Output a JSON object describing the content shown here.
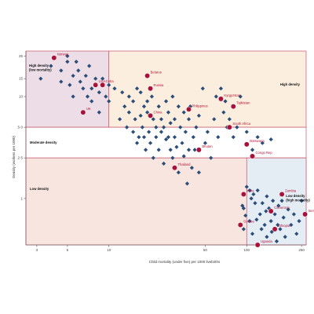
{
  "chart_data": {
    "type": "scatter",
    "xlabel": "Child mortality (under five) per 1000 livebirths",
    "ylabel": "Density (workers per 1000)",
    "x_scale": "log",
    "y_scale": "log",
    "xlim": [
      2.5,
      270
    ],
    "ylim": [
      0.35,
      28
    ],
    "x_ticks": [
      3,
      5,
      10,
      50,
      100,
      250
    ],
    "x_tick_labels": [
      "3",
      "5",
      "10",
      "50",
      "100",
      "250"
    ],
    "y_ticks": [
      1,
      2.5,
      5,
      10,
      15,
      25
    ],
    "y_tick_labels": [
      "1",
      "2·5",
      "5·0",
      "10",
      "15",
      "25"
    ],
    "thresholds": {
      "x_low": 10,
      "x_high": 100,
      "y_low": 2.5,
      "y_high": 5
    },
    "colors": {
      "point": "#2b4d78",
      "highlight": "#a8123a",
      "border": "#c8566b",
      "zone_high_low_mortality": "#ecdde6",
      "zone_high": "#fbeede",
      "zone_moderate": "#ffffff",
      "zone_low": "#f8e5df",
      "zone_low_high_mortality": "#e4ecf4"
    },
    "zones": [
      {
        "name": "High density\n(low mortality)",
        "key": "hd_lm"
      },
      {
        "name": "High density",
        "key": "hd"
      },
      {
        "name": "Moderate density",
        "key": "md"
      },
      {
        "name": "Low density",
        "key": "ld"
      },
      {
        "name": "Low density\n(high mortality)",
        "key": "ld_hm"
      }
    ],
    "highlighted": [
      {
        "label": "Norway",
        "x": 4,
        "y": 24
      },
      {
        "label": "USA",
        "x": 8,
        "y": 13
      },
      {
        "label": "Cuba",
        "x": 9,
        "y": 13
      },
      {
        "label": "UK",
        "x": 6.5,
        "y": 7
      },
      {
        "label": "Belarus",
        "x": 19,
        "y": 16
      },
      {
        "label": "Russia",
        "x": 20,
        "y": 12
      },
      {
        "label": "China",
        "x": 20,
        "y": 6.5
      },
      {
        "label": "Philippines",
        "x": 38,
        "y": 7.5
      },
      {
        "label": "Kyrgyzstan",
        "x": 65,
        "y": 9.5
      },
      {
        "label": "Tajikistan",
        "x": 80,
        "y": 8
      },
      {
        "label": "South Africa",
        "x": 75,
        "y": 5
      },
      {
        "label": "Bhutan",
        "x": 45,
        "y": 3
      },
      {
        "label": "Thailand",
        "x": 30,
        "y": 2
      },
      {
        "label": "Botswana",
        "x": 100,
        "y": 3.4
      },
      {
        "label": "Congo Rep",
        "x": 110,
        "y": 2.6
      },
      {
        "label": "India",
        "x": 95,
        "y": 1.1
      },
      {
        "label": "Zambia",
        "x": 180,
        "y": 1.1
      },
      {
        "label": "Cameroon",
        "x": 150,
        "y": 0.75
      },
      {
        "label": "Sierra Leone",
        "x": 265,
        "y": 0.7
      },
      {
        "label": "Guinea",
        "x": 90,
        "y": 0.55
      },
      {
        "label": "Ethiopia",
        "x": 160,
        "y": 0.5
      },
      {
        "label": "Uganda",
        "x": 120,
        "y": 0.35
      }
    ],
    "points": [
      [
        3.2,
        15
      ],
      [
        3.8,
        20
      ],
      [
        4.5,
        14
      ],
      [
        4.5,
        18
      ],
      [
        5,
        25
      ],
      [
        5,
        22
      ],
      [
        5.2,
        13
      ],
      [
        5.5,
        16
      ],
      [
        5.5,
        10
      ],
      [
        5.8,
        22
      ],
      [
        6,
        18
      ],
      [
        6.2,
        14
      ],
      [
        6.5,
        12
      ],
      [
        6.8,
        16
      ],
      [
        7,
        10
      ],
      [
        7.2,
        20
      ],
      [
        7.5,
        12
      ],
      [
        7.5,
        9
      ],
      [
        8,
        15
      ],
      [
        8.5,
        11
      ],
      [
        8.5,
        7
      ],
      [
        9,
        15
      ],
      [
        9.5,
        10
      ],
      [
        10,
        13
      ],
      [
        10,
        9
      ],
      [
        11,
        12
      ],
      [
        12,
        6
      ],
      [
        12.5,
        11
      ],
      [
        13,
        8
      ],
      [
        13.5,
        5
      ],
      [
        14,
        10
      ],
      [
        14,
        7
      ],
      [
        15,
        4.5
      ],
      [
        15,
        9
      ],
      [
        15.5,
        6
      ],
      [
        16,
        12
      ],
      [
        16,
        3.5
      ],
      [
        16.5,
        4
      ],
      [
        17,
        11
      ],
      [
        17,
        6.5
      ],
      [
        17.5,
        5
      ],
      [
        18,
        8
      ],
      [
        18,
        4
      ],
      [
        18.5,
        3
      ],
      [
        19,
        9
      ],
      [
        19,
        7
      ],
      [
        19.5,
        4.5
      ],
      [
        20,
        3.5
      ],
      [
        20.5,
        10
      ],
      [
        21,
        6
      ],
      [
        21,
        2.5
      ],
      [
        22,
        5
      ],
      [
        22,
        4
      ],
      [
        23,
        8
      ],
      [
        23,
        3
      ],
      [
        24,
        6
      ],
      [
        24,
        4.5
      ],
      [
        25,
        2.2
      ],
      [
        25,
        5
      ],
      [
        26,
        9
      ],
      [
        26,
        3.8
      ],
      [
        27,
        7
      ],
      [
        27,
        4
      ],
      [
        28,
        5.5
      ],
      [
        28,
        3
      ],
      [
        29,
        10
      ],
      [
        29,
        2.5
      ],
      [
        30,
        6
      ],
      [
        30,
        4
      ],
      [
        31,
        3.2
      ],
      [
        32,
        8
      ],
      [
        32,
        1.8
      ],
      [
        33,
        5
      ],
      [
        34,
        3.5
      ],
      [
        35,
        2.6
      ],
      [
        35,
        7
      ],
      [
        36,
        4.5
      ],
      [
        37,
        1.4
      ],
      [
        38,
        6
      ],
      [
        38,
        3
      ],
      [
        39,
        8
      ],
      [
        40,
        2
      ],
      [
        41,
        4
      ],
      [
        42,
        3
      ],
      [
        43,
        5
      ],
      [
        45,
        1.8
      ],
      [
        45,
        6.5
      ],
      [
        48,
        12
      ],
      [
        50,
        3.5
      ],
      [
        52,
        4.5
      ],
      [
        55,
        2.5
      ],
      [
        58,
        6
      ],
      [
        60,
        10
      ],
      [
        62,
        4
      ],
      [
        65,
        12
      ],
      [
        68,
        7
      ],
      [
        70,
        9
      ],
      [
        72,
        5
      ],
      [
        75,
        6
      ],
      [
        80,
        4
      ],
      [
        85,
        5
      ],
      [
        90,
        10
      ],
      [
        100,
        4.5
      ],
      [
        110,
        3
      ],
      [
        120,
        4
      ],
      [
        130,
        3.5
      ],
      [
        150,
        3.8
      ],
      [
        93,
        0.85
      ],
      [
        95,
        0.8
      ],
      [
        100,
        1.3
      ],
      [
        105,
        1.2
      ],
      [
        108,
        1.0
      ],
      [
        110,
        0.45
      ],
      [
        112,
        1.1
      ],
      [
        115,
        0.9
      ],
      [
        118,
        0.62
      ],
      [
        120,
        1.2
      ],
      [
        125,
        0.7
      ],
      [
        130,
        0.9
      ],
      [
        135,
        0.55
      ],
      [
        140,
        1.05
      ],
      [
        140,
        0.42
      ],
      [
        145,
        0.8
      ],
      [
        150,
        0.6
      ],
      [
        155,
        0.95
      ],
      [
        160,
        0.7
      ],
      [
        165,
        0.38
      ],
      [
        170,
        0.85
      ],
      [
        175,
        0.5
      ],
      [
        180,
        0.95
      ],
      [
        185,
        0.65
      ],
      [
        190,
        0.42
      ],
      [
        200,
        0.78
      ],
      [
        210,
        0.55
      ],
      [
        220,
        0.7
      ],
      [
        230,
        0.45
      ],
      [
        240,
        0.6
      ],
      [
        95,
        0.5
      ],
      [
        105,
        0.6
      ],
      [
        128,
        0.5
      ],
      [
        138,
        0.75
      ],
      [
        152,
        0.47
      ],
      [
        168,
        0.55
      ],
      [
        98,
        0.68
      ],
      [
        250,
        0.95
      ]
    ]
  }
}
